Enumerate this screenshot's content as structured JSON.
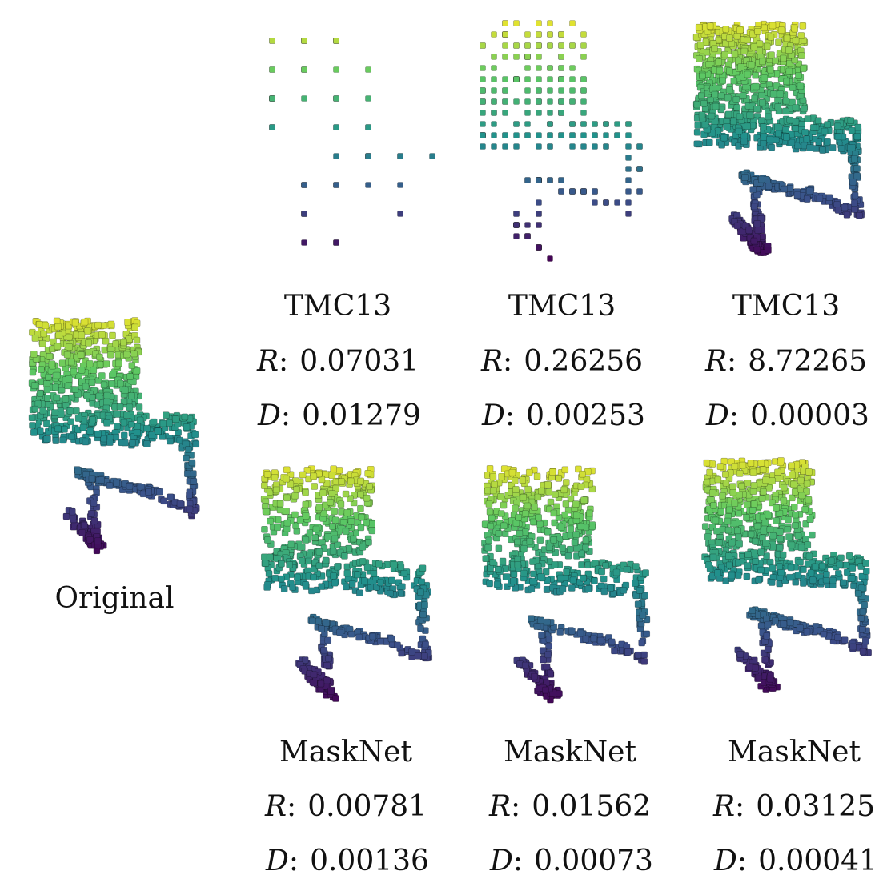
{
  "original": {
    "label": "Original"
  },
  "colormap": [
    "#440154",
    "#3b528b",
    "#21918c",
    "#5ec962",
    "#fde725"
  ],
  "panels": [
    {
      "id": "tmc13-1",
      "method": "TMC13",
      "r_label": "R",
      "r_value": "0.07031",
      "d_label": "D",
      "d_value": "0.01279",
      "density": "very-sparse"
    },
    {
      "id": "tmc13-2",
      "method": "TMC13",
      "r_label": "R",
      "r_value": "0.26256",
      "d_label": "D",
      "d_value": "0.00253",
      "density": "sparse-grid"
    },
    {
      "id": "tmc13-3",
      "method": "TMC13",
      "r_label": "R",
      "r_value": "8.72265",
      "d_label": "D",
      "d_value": "0.00003",
      "density": "dense"
    },
    {
      "id": "masknet-1",
      "method": "MaskNet",
      "r_label": "R",
      "r_value": "0.00781",
      "d_label": "D",
      "d_value": "0.00136",
      "density": "medium"
    },
    {
      "id": "masknet-2",
      "method": "MaskNet",
      "r_label": "R",
      "r_value": "0.01562",
      "d_label": "D",
      "d_value": "0.00073",
      "density": "medium"
    },
    {
      "id": "masknet-3",
      "method": "MaskNet",
      "r_label": "R",
      "r_value": "0.03125",
      "d_label": "D",
      "d_value": "0.00041",
      "density": "medium-dense"
    }
  ]
}
